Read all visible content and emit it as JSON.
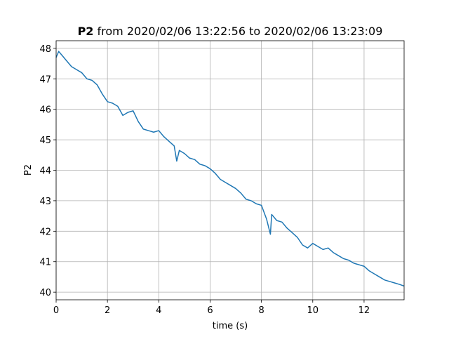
{
  "chart_data": {
    "type": "line",
    "title": {
      "name": "P2",
      "text": "from 2020/02/06 13:22:56 to 2020/02/06 13:23:09"
    },
    "xlabel": "time (s)",
    "ylabel": "P2",
    "x": [
      0,
      0.1,
      0.2,
      0.4,
      0.6,
      0.8,
      1.0,
      1.2,
      1.4,
      1.6,
      1.8,
      2.0,
      2.2,
      2.4,
      2.6,
      2.8,
      3.0,
      3.2,
      3.4,
      3.6,
      3.8,
      4.0,
      4.2,
      4.4,
      4.6,
      4.7,
      4.8,
      5.0,
      5.2,
      5.4,
      5.6,
      5.8,
      6.0,
      6.2,
      6.4,
      6.6,
      6.8,
      7.0,
      7.2,
      7.4,
      7.6,
      7.8,
      8.0,
      8.2,
      8.35,
      8.4,
      8.6,
      8.8,
      9.0,
      9.2,
      9.4,
      9.6,
      9.8,
      10.0,
      10.2,
      10.4,
      10.6,
      10.8,
      11.0,
      11.2,
      11.4,
      11.6,
      11.8,
      12.0,
      12.2,
      12.4,
      12.6,
      12.8,
      13.0,
      13.2,
      13.4,
      13.56
    ],
    "series": [
      {
        "name": "P2",
        "color": "#1f77b4",
        "values": [
          47.7,
          47.9,
          47.8,
          47.6,
          47.4,
          47.3,
          47.2,
          47.0,
          46.95,
          46.8,
          46.5,
          46.25,
          46.2,
          46.1,
          45.8,
          45.9,
          45.95,
          45.6,
          45.35,
          45.3,
          45.25,
          45.3,
          45.1,
          44.95,
          44.8,
          44.3,
          44.65,
          44.55,
          44.4,
          44.35,
          44.2,
          44.15,
          44.05,
          43.9,
          43.7,
          43.6,
          43.5,
          43.4,
          43.25,
          43.05,
          43.0,
          42.9,
          42.85,
          42.4,
          41.9,
          42.55,
          42.35,
          42.3,
          42.1,
          41.95,
          41.8,
          41.55,
          41.45,
          41.6,
          41.5,
          41.4,
          41.45,
          41.3,
          41.2,
          41.1,
          41.05,
          40.95,
          40.9,
          40.85,
          40.7,
          40.6,
          40.5,
          40.4,
          40.35,
          40.3,
          40.25,
          40.2
        ]
      }
    ],
    "xlim": [
      0,
      13.56
    ],
    "ylim": [
      39.75,
      48.25
    ],
    "xticks": [
      0,
      2,
      4,
      6,
      8,
      10,
      12
    ],
    "yticks": [
      40,
      41,
      42,
      43,
      44,
      45,
      46,
      47,
      48
    ],
    "grid": true
  }
}
